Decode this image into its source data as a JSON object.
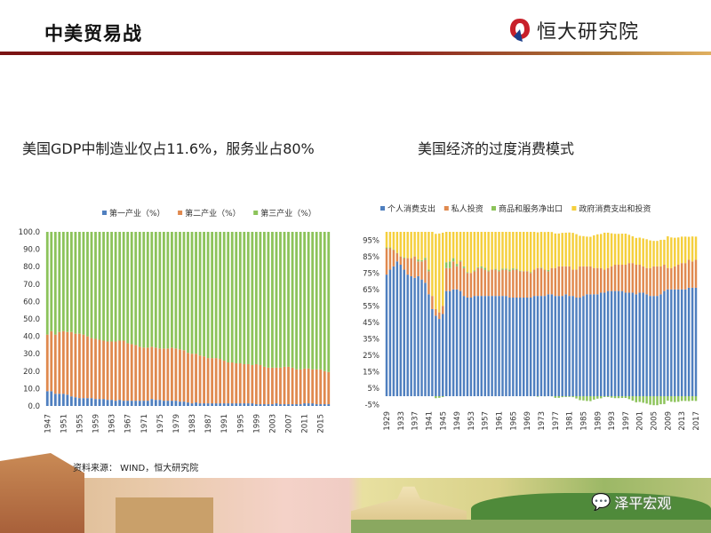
{
  "header": {
    "title": "中美贸易战",
    "logo_text": "恒大研究院"
  },
  "colors": {
    "primary": "#4f7fbf",
    "secondary": "#e0894e",
    "tertiary": "#8cc35a",
    "gov": "#f5cf3c",
    "rule": "#7a1414"
  },
  "footer": {
    "source": "资料来源： WIND，恒大研究院",
    "watermark": "泽平宏观"
  },
  "chart_data": [
    {
      "type": "bar",
      "stacked": true,
      "title": "美国GDP中制造业仅占11.6%，服务业占80%",
      "ylim": [
        0,
        100
      ],
      "yticks": [
        "0.0",
        "10.0",
        "20.0",
        "30.0",
        "40.0",
        "50.0",
        "60.0",
        "70.0",
        "80.0",
        "90.0",
        "100.0"
      ],
      "x_start": 1947,
      "x_end": 2017,
      "xtick_step": 4,
      "legend_position": "top",
      "series": [
        {
          "name": "第一产业（%）",
          "color": "#4f7fbf",
          "values": [
            8.5,
            8.5,
            7,
            7,
            7,
            6.5,
            5.5,
            5,
            4.5,
            4.5,
            4.5,
            4.5,
            4,
            4,
            4,
            3.5,
            3.5,
            3,
            3.5,
            3,
            3,
            3,
            3,
            3,
            3,
            3,
            4,
            3.5,
            3.5,
            3,
            3,
            3,
            3,
            2.5,
            2.5,
            2,
            1.5,
            2,
            1.5,
            1.5,
            1.5,
            1.5,
            1.5,
            1.5,
            1.5,
            1.5,
            1.5,
            1.5,
            1.5,
            1.5,
            1.5,
            1.5,
            1,
            1,
            1,
            1,
            1,
            1.5,
            1,
            1,
            1,
            1,
            1,
            1,
            1.5,
            1.5,
            1.5,
            1,
            1,
            1,
            1
          ]
        },
        {
          "name": "第二产业（%）",
          "color": "#e0894e",
          "values": [
            32.5,
            34.5,
            34,
            35.5,
            36,
            36,
            37,
            36.5,
            37,
            36.5,
            35.5,
            34.5,
            34.5,
            34,
            33.5,
            33.5,
            33.5,
            34,
            34,
            34.5,
            33,
            32.5,
            32,
            31,
            30.5,
            30.5,
            30,
            30,
            29.5,
            30,
            30,
            30.5,
            30,
            30,
            29.5,
            28.5,
            28.5,
            28,
            27.5,
            27,
            26,
            26,
            26,
            25.5,
            24.5,
            23.5,
            23.5,
            23,
            23,
            22.5,
            22.5,
            22,
            23,
            22.5,
            21.5,
            21,
            21,
            20.5,
            21,
            21.5,
            21.5,
            21,
            20,
            20,
            20,
            20,
            19.5,
            20,
            20,
            19,
            18.5
          ]
        },
        {
          "name": "第三产业（%）",
          "color": "#8cc35a",
          "values": [
            59,
            57,
            59,
            57.5,
            57,
            57.5,
            57.5,
            58.5,
            58.5,
            59,
            60,
            61,
            61.5,
            62,
            62.5,
            63,
            63,
            63,
            62.5,
            62.5,
            64,
            64.5,
            65,
            66,
            66.5,
            66.5,
            66,
            66.5,
            67,
            67,
            67,
            66.5,
            67,
            67.5,
            68,
            69.5,
            70,
            70,
            71,
            71.5,
            72.5,
            72.5,
            72.5,
            73,
            74,
            75,
            75,
            75.5,
            75.5,
            76,
            76,
            76.5,
            76,
            76.5,
            77.5,
            78,
            78,
            78,
            78,
            77.5,
            77.5,
            78,
            79,
            79,
            78.5,
            78.5,
            79,
            79,
            79,
            80,
            80.5
          ]
        }
      ]
    },
    {
      "type": "bar",
      "stacked": true,
      "title": "美国经济的过度消费模式",
      "ylim": [
        -5,
        100
      ],
      "yticks": [
        "-5%",
        "5%",
        "15%",
        "25%",
        "35%",
        "45%",
        "55%",
        "65%",
        "75%",
        "85%",
        "95%"
      ],
      "x_start": 1929,
      "x_end": 2017,
      "xtick_step": 4,
      "legend_position": "top",
      "series": [
        {
          "name": "个人消费支出",
          "color": "#4f7fbf",
          "values": [
            74,
            77,
            79,
            82,
            80,
            77,
            74,
            73,
            72,
            73,
            71,
            69,
            62,
            53,
            49,
            47,
            50,
            64,
            64,
            65,
            65,
            64,
            61,
            60,
            60,
            61,
            61,
            61,
            61,
            61,
            61,
            61,
            61,
            61,
            61,
            60,
            60,
            60,
            60,
            60,
            60,
            60,
            61,
            61,
            61,
            61,
            62,
            62,
            61,
            61,
            61,
            62,
            61,
            61,
            60,
            60,
            61,
            62,
            62,
            62,
            62,
            63,
            63,
            64,
            64,
            64,
            64,
            64,
            63,
            63,
            63,
            62,
            63,
            63,
            62,
            61,
            61,
            61,
            62,
            64,
            65,
            65,
            65,
            65,
            65,
            65,
            66,
            66,
            66
          ]
        },
        {
          "name": "私人投资",
          "color": "#e0894e",
          "values": [
            16,
            13,
            10,
            5,
            5,
            7,
            10,
            11,
            13,
            9,
            11,
            14,
            14,
            8,
            4,
            4,
            5,
            14,
            14,
            17,
            14,
            18,
            17,
            15,
            15,
            15,
            17,
            17,
            16,
            15,
            16,
            16,
            15,
            16,
            16,
            16,
            17,
            17,
            16,
            16,
            16,
            15,
            16,
            17,
            17,
            16,
            14,
            16,
            17,
            18,
            18,
            17,
            18,
            16,
            17,
            19,
            18,
            17,
            17,
            16,
            16,
            15,
            14,
            14,
            15,
            16,
            16,
            16,
            17,
            18,
            18,
            18,
            17,
            16,
            16,
            17,
            18,
            18,
            17,
            16,
            13,
            13,
            14,
            15,
            16,
            16,
            17,
            16,
            17
          ]
        },
        {
          "name": "商品和服务净出口",
          "color": "#8cc35a",
          "values": [
            0.5,
            0.5,
            0.3,
            0.2,
            0.1,
            0.5,
            0,
            0,
            0.1,
            1.2,
            0.8,
            1.2,
            1,
            0,
            -1.2,
            -1,
            -0.5,
            3.5,
            4,
            2,
            1.5,
            0.6,
            1,
            0.5,
            0,
            0.5,
            0.5,
            1,
            1.2,
            0.5,
            0,
            0.5,
            0.7,
            0.6,
            0.7,
            1,
            0.8,
            0.5,
            0.4,
            0.1,
            0.1,
            0.4,
            0,
            -0.3,
            0.3,
            -0.1,
            0.8,
            -0.1,
            -1,
            -1,
            -0.6,
            -0.5,
            -0.4,
            -0.6,
            -1.4,
            -2.4,
            -2.6,
            -2.9,
            -3,
            -2.1,
            -1.5,
            -1.3,
            -0.5,
            -0.5,
            -0.9,
            -1.2,
            -1.2,
            -1.1,
            -1.1,
            -1.8,
            -2.7,
            -3.7,
            -3.5,
            -4,
            -4.5,
            -5.2,
            -5.5,
            -5.5,
            -4.9,
            -4.8,
            -2.7,
            -3.4,
            -3.6,
            -3.4,
            -2.9,
            -2.9,
            -3,
            -2.8,
            -2.9
          ]
        },
        {
          "name": "政府消费支出和投资",
          "color": "#f5cf3c",
          "values": [
            9.5,
            9.5,
            10.7,
            12.8,
            14.9,
            15.5,
            16,
            16,
            14.9,
            16.8,
            17.2,
            15.8,
            23,
            39,
            45.8,
            48,
            44.5,
            18.5,
            18,
            16,
            19.5,
            17.4,
            21,
            24.5,
            25,
            23.5,
            21.5,
            21,
            21.8,
            23.5,
            23,
            22.5,
            23.3,
            22.4,
            22.3,
            23,
            22.2,
            22.5,
            23.6,
            23.9,
            23.9,
            24.6,
            23,
            21.7,
            21.7,
            22.9,
            23.2,
            21.9,
            21,
            20,
            20.4,
            20.5,
            20.6,
            22.4,
            21.6,
            18.6,
            18.4,
            18.1,
            18,
            19.9,
            20.5,
            20.7,
            22.5,
            21.5,
            20.1,
            18.8,
            18.8,
            18.9,
            18.9,
            17.2,
            16.3,
            16.3,
            16.5,
            17,
            17.5,
            16.8,
            15.5,
            15.5,
            16.1,
            15.2,
            19.3,
            18.6,
            17.4,
            16.6,
            16.1,
            16.1,
            14,
            15.2,
            14.1
          ]
        }
      ]
    }
  ]
}
